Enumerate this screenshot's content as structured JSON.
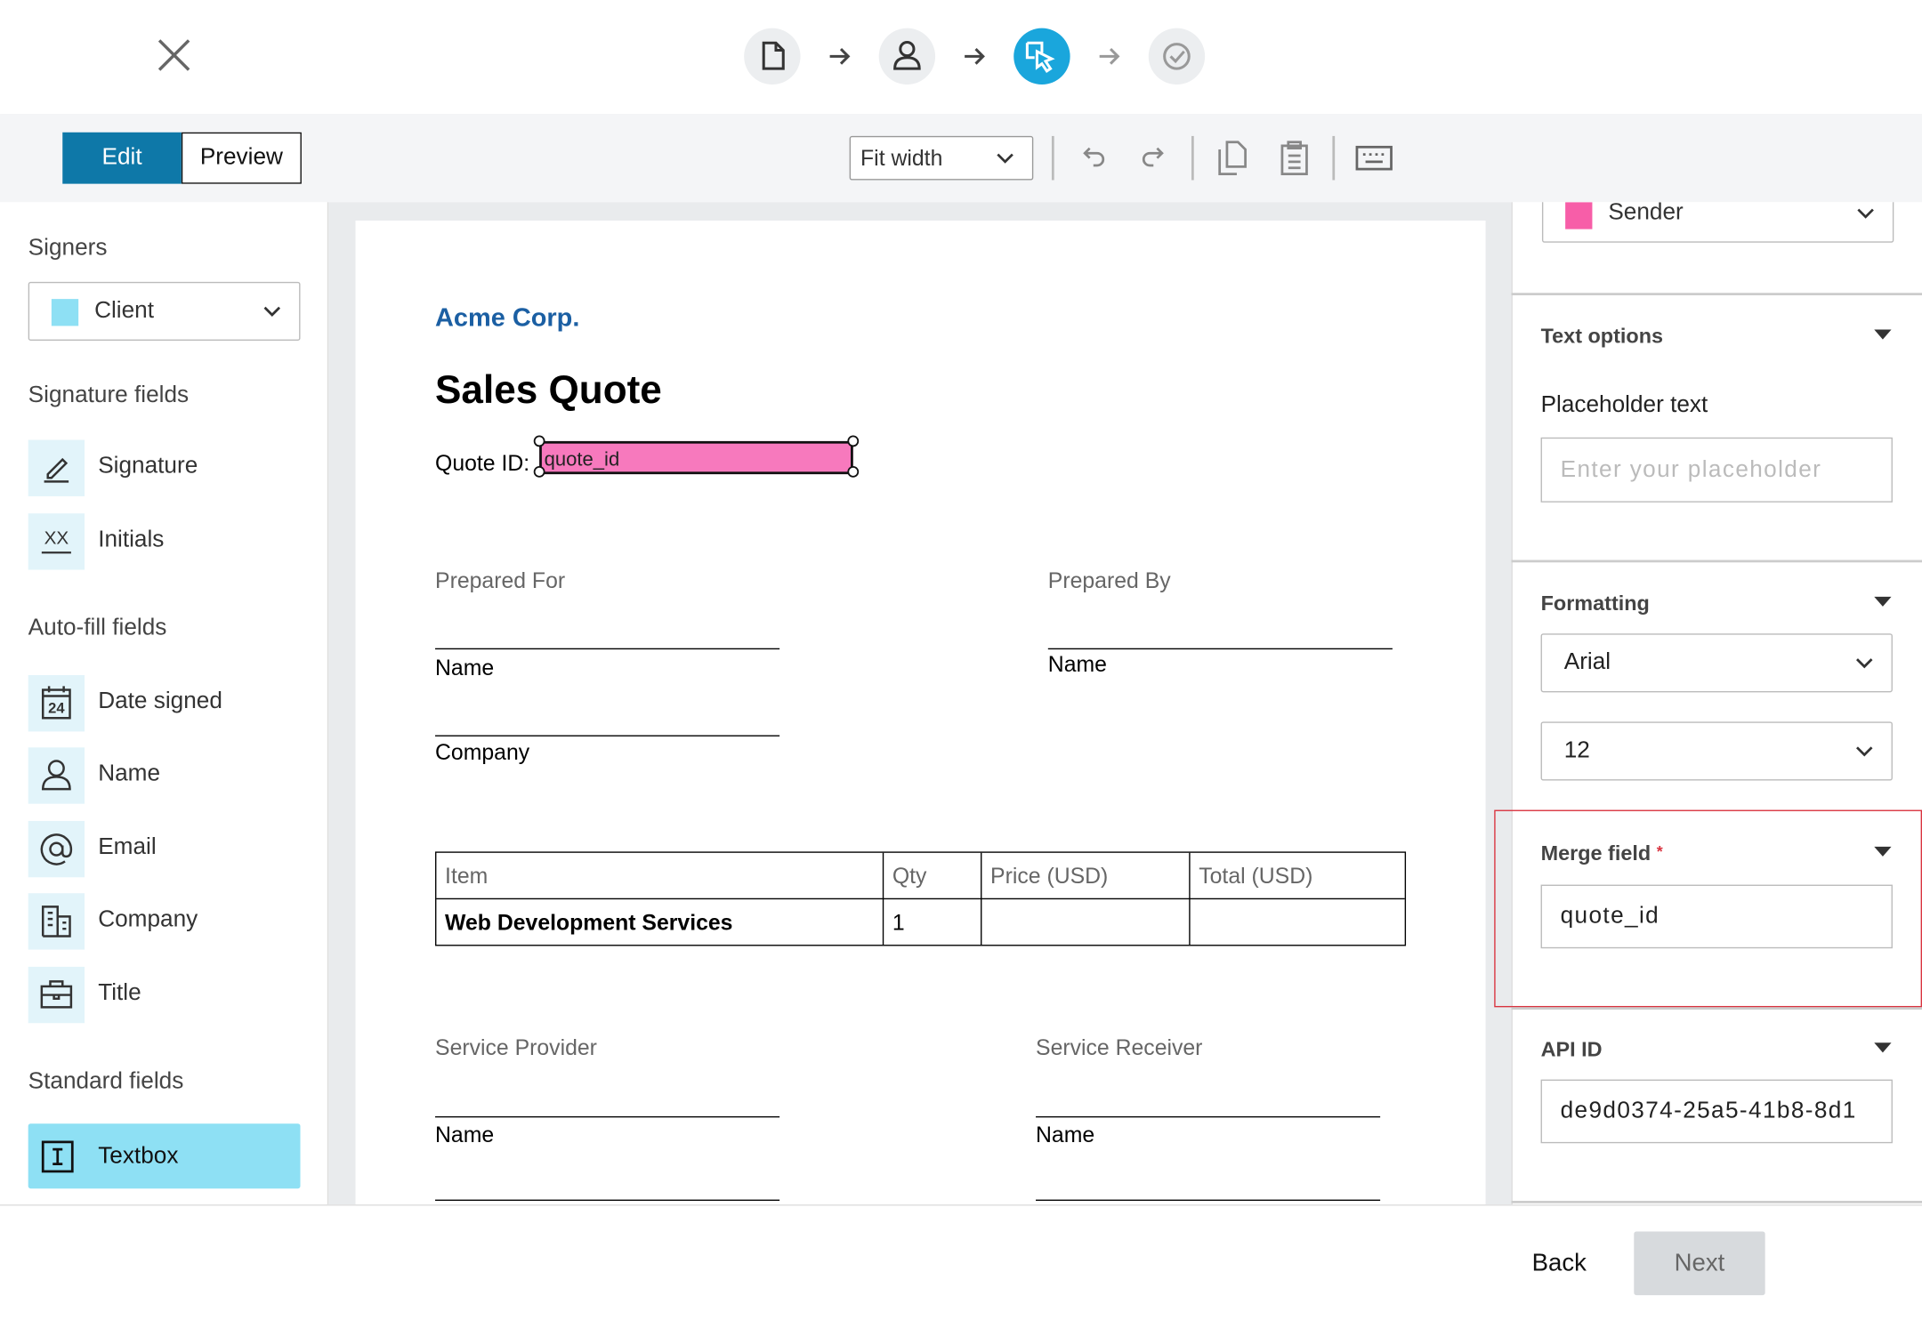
{
  "toolbar": {
    "edit": "Edit",
    "preview": "Preview",
    "zoom": "Fit width"
  },
  "sidebar": {
    "signers_heading": "Signers",
    "signer": "Client",
    "signature_heading": "Signature fields",
    "signature_items": [
      {
        "label": "Signature"
      },
      {
        "label": "Initials",
        "icon_text": "XX"
      }
    ],
    "autofill_heading": "Auto-fill fields",
    "autofill_items": [
      {
        "label": "Date signed",
        "icon_text": "24"
      },
      {
        "label": "Name"
      },
      {
        "label": "Email"
      },
      {
        "label": "Company"
      },
      {
        "label": "Title"
      }
    ],
    "standard_heading": "Standard fields",
    "standard_items": [
      {
        "label": "Textbox"
      }
    ]
  },
  "document": {
    "company": "Acme Corp.",
    "title": "Sales Quote",
    "quote_label": "Quote ID:",
    "quote_field": "quote_id",
    "prepared_for": "Prepared For",
    "prepared_by": "Prepared By",
    "for_name": "Name",
    "for_company": "Company",
    "by_name": "Name",
    "table": {
      "header": [
        "Item",
        "Qty",
        "Price (USD)",
        "Total (USD)"
      ],
      "rows": [
        [
          "Web Development Services",
          "1"
        ]
      ]
    },
    "service_provider": "Service Provider",
    "service_receiver": "Service Receiver",
    "provider_name": "Name",
    "receiver_name": "Name"
  },
  "properties": {
    "signer": "Sender",
    "text_options": "Text options",
    "placeholder_label": "Placeholder text",
    "placeholder_hint": "Enter your placeholder",
    "formatting": "Formatting",
    "font": "Arial",
    "size": "12",
    "merge_field": "Merge field",
    "required_mark": "*",
    "merge_value": "quote_id",
    "api_id": "API ID",
    "api_value": "de9d0374-25a5-41b8-8d1"
  },
  "footer": {
    "back": "Back",
    "next": "Next"
  }
}
